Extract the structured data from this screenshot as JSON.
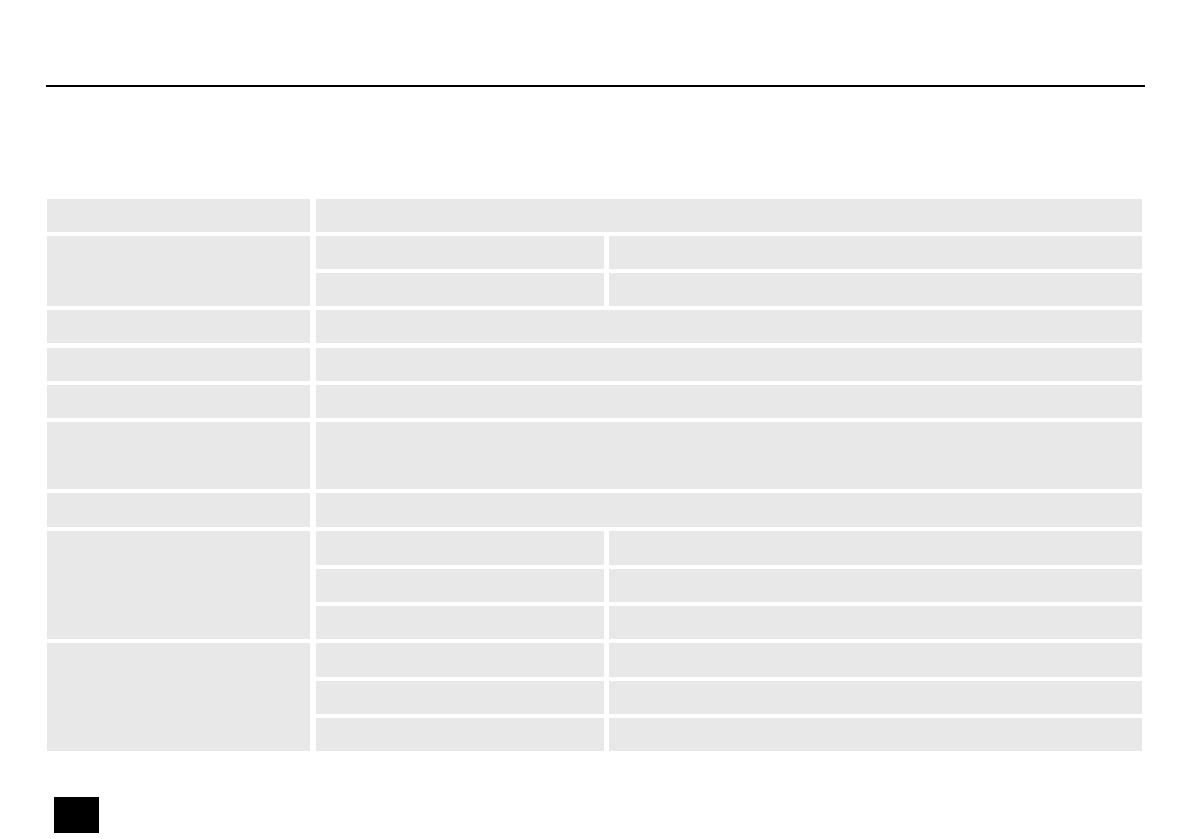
{
  "colors": {
    "cell": "#e8e8e8",
    "rule": "#000000",
    "marker": "#000000"
  },
  "table": {
    "rows": [
      {
        "sub_rows": 1,
        "split": false
      },
      {
        "sub_rows": 2,
        "split": true
      },
      {
        "sub_rows": 1,
        "split": false
      },
      {
        "sub_rows": 1,
        "split": false
      },
      {
        "sub_rows": 1,
        "split": false
      },
      {
        "sub_rows": 1,
        "split": false
      },
      {
        "sub_rows": 1,
        "split": false
      },
      {
        "sub_rows": 3,
        "split": true
      },
      {
        "sub_rows": 3,
        "split": true
      }
    ]
  }
}
